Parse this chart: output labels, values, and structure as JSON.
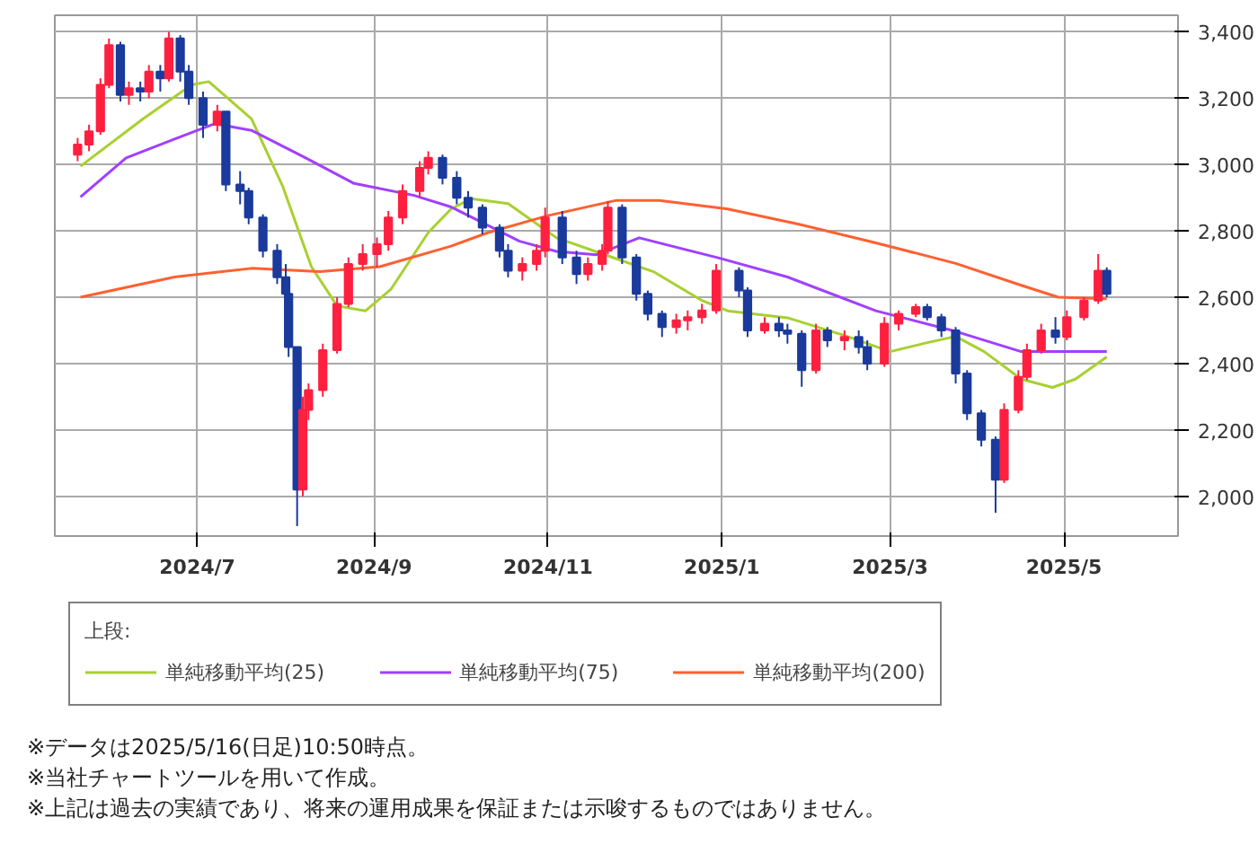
{
  "chart_data": {
    "type": "candlestick",
    "x": [
      "2024-05-20",
      "2024-05-24",
      "2024-05-28",
      "2024-05-31",
      "2024-06-04",
      "2024-06-07",
      "2024-06-11",
      "2024-06-14",
      "2024-06-18",
      "2024-06-21",
      "2024-06-25",
      "2024-06-28",
      "2024-07-03",
      "2024-07-08",
      "2024-07-11",
      "2024-07-16",
      "2024-07-19",
      "2024-07-24",
      "2024-07-29",
      "2024-08-01",
      "2024-08-02",
      "2024-08-05",
      "2024-08-07",
      "2024-08-09",
      "2024-08-14",
      "2024-08-19",
      "2024-08-23",
      "2024-08-28",
      "2024-09-02",
      "2024-09-06",
      "2024-09-11",
      "2024-09-17",
      "2024-09-20",
      "2024-09-25",
      "2024-09-30",
      "2024-10-04",
      "2024-10-09",
      "2024-10-15",
      "2024-10-18",
      "2024-10-23",
      "2024-10-28",
      "2024-10-31",
      "2024-11-06",
      "2024-11-11",
      "2024-11-15",
      "2024-11-20",
      "2024-11-22",
      "2024-11-27",
      "2024-12-02",
      "2024-12-06",
      "2024-12-11",
      "2024-12-16",
      "2024-12-20",
      "2024-12-25",
      "2024-12-30",
      "2025-01-07",
      "2025-01-10",
      "2025-01-16",
      "2025-01-21",
      "2025-01-24",
      "2025-01-29",
      "2025-02-03",
      "2025-02-07",
      "2025-02-13",
      "2025-02-18",
      "2025-02-21",
      "2025-02-27",
      "2025-03-04",
      "2025-03-10",
      "2025-03-14",
      "2025-03-19",
      "2025-03-24",
      "2025-03-28",
      "2025-04-02",
      "2025-04-07",
      "2025-04-10",
      "2025-04-15",
      "2025-04-18",
      "2025-04-23",
      "2025-04-28",
      "2025-05-02",
      "2025-05-08",
      "2025-05-13",
      "2025-05-16"
    ],
    "ohlc": [
      [
        3030,
        3080,
        3010,
        3060
      ],
      [
        3060,
        3120,
        3040,
        3100
      ],
      [
        3100,
        3260,
        3090,
        3240
      ],
      [
        3240,
        3380,
        3230,
        3360
      ],
      [
        3360,
        3370,
        3190,
        3210
      ],
      [
        3210,
        3250,
        3180,
        3230
      ],
      [
        3230,
        3250,
        3190,
        3220
      ],
      [
        3220,
        3300,
        3200,
        3280
      ],
      [
        3280,
        3300,
        3220,
        3260
      ],
      [
        3260,
        3400,
        3250,
        3380
      ],
      [
        3380,
        3390,
        3250,
        3280
      ],
      [
        3280,
        3300,
        3180,
        3200
      ],
      [
        3200,
        3220,
        3080,
        3120
      ],
      [
        3120,
        3180,
        3100,
        3160
      ],
      [
        3160,
        3160,
        2920,
        2940
      ],
      [
        2940,
        2980,
        2880,
        2920
      ],
      [
        2920,
        2930,
        2820,
        2840
      ],
      [
        2840,
        2850,
        2720,
        2740
      ],
      [
        2740,
        2760,
        2640,
        2660
      ],
      [
        2660,
        2700,
        2590,
        2610
      ],
      [
        2610,
        2620,
        2420,
        2450
      ],
      [
        2450,
        2450,
        1910,
        2020
      ],
      [
        2020,
        2300,
        2000,
        2260
      ],
      [
        2260,
        2340,
        2230,
        2320
      ],
      [
        2320,
        2460,
        2300,
        2440
      ],
      [
        2440,
        2600,
        2430,
        2580
      ],
      [
        2580,
        2720,
        2570,
        2700
      ],
      [
        2700,
        2760,
        2680,
        2730
      ],
      [
        2730,
        2780,
        2690,
        2760
      ],
      [
        2760,
        2860,
        2740,
        2840
      ],
      [
        2840,
        2940,
        2820,
        2920
      ],
      [
        2920,
        3010,
        2900,
        2990
      ],
      [
        2990,
        3040,
        2970,
        3020
      ],
      [
        3020,
        3030,
        2940,
        2960
      ],
      [
        2960,
        2980,
        2880,
        2900
      ],
      [
        2900,
        2920,
        2840,
        2870
      ],
      [
        2870,
        2880,
        2790,
        2810
      ],
      [
        2810,
        2820,
        2720,
        2740
      ],
      [
        2740,
        2760,
        2660,
        2680
      ],
      [
        2680,
        2720,
        2650,
        2700
      ],
      [
        2700,
        2760,
        2680,
        2740
      ],
      [
        2740,
        2870,
        2720,
        2840
      ],
      [
        2840,
        2860,
        2700,
        2720
      ],
      [
        2720,
        2740,
        2640,
        2670
      ],
      [
        2670,
        2720,
        2650,
        2700
      ],
      [
        2700,
        2760,
        2680,
        2740
      ],
      [
        2740,
        2890,
        2730,
        2870
      ],
      [
        2870,
        2880,
        2700,
        2720
      ],
      [
        2720,
        2730,
        2590,
        2610
      ],
      [
        2610,
        2620,
        2530,
        2550
      ],
      [
        2550,
        2560,
        2480,
        2510
      ],
      [
        2510,
        2550,
        2490,
        2530
      ],
      [
        2530,
        2560,
        2500,
        2540
      ],
      [
        2540,
        2580,
        2520,
        2560
      ],
      [
        2560,
        2700,
        2550,
        2680
      ],
      [
        2680,
        2690,
        2600,
        2620
      ],
      [
        2620,
        2630,
        2480,
        2500
      ],
      [
        2500,
        2540,
        2490,
        2520
      ],
      [
        2520,
        2540,
        2480,
        2500
      ],
      [
        2500,
        2520,
        2460,
        2490
      ],
      [
        2490,
        2500,
        2330,
        2380
      ],
      [
        2380,
        2520,
        2370,
        2500
      ],
      [
        2500,
        2510,
        2450,
        2470
      ],
      [
        2470,
        2500,
        2440,
        2480
      ],
      [
        2480,
        2500,
        2430,
        2450
      ],
      [
        2450,
        2470,
        2380,
        2400
      ],
      [
        2400,
        2540,
        2390,
        2520
      ],
      [
        2520,
        2560,
        2500,
        2550
      ],
      [
        2550,
        2580,
        2540,
        2570
      ],
      [
        2570,
        2580,
        2530,
        2540
      ],
      [
        2540,
        2550,
        2480,
        2500
      ],
      [
        2500,
        2510,
        2340,
        2370
      ],
      [
        2370,
        2380,
        2230,
        2250
      ],
      [
        2250,
        2260,
        2150,
        2170
      ],
      [
        2170,
        2180,
        1950,
        2050
      ],
      [
        2050,
        2280,
        2040,
        2260
      ],
      [
        2260,
        2380,
        2250,
        2360
      ],
      [
        2360,
        2460,
        2350,
        2440
      ],
      [
        2440,
        2520,
        2430,
        2500
      ],
      [
        2500,
        2540,
        2460,
        2480
      ],
      [
        2480,
        2560,
        2470,
        2540
      ],
      [
        2540,
        2600,
        2530,
        2590
      ],
      [
        2590,
        2730,
        2580,
        2680
      ],
      [
        2680,
        2690,
        2600,
        2610
      ]
    ],
    "colors": [
      "#ff2040",
      "#ff2040",
      "#ff2040",
      "#ff2040",
      "#1a3a9c",
      "#ff2040",
      "#1a3a9c",
      "#ff2040",
      "#1a3a9c",
      "#ff2040",
      "#1a3a9c",
      "#1a3a9c",
      "#1a3a9c",
      "#ff2040",
      "#1a3a9c",
      "#1a3a9c",
      "#1a3a9c",
      "#1a3a9c",
      "#1a3a9c",
      "#1a3a9c",
      "#1a3a9c",
      "#1a3a9c",
      "#ff2040",
      "#ff2040",
      "#ff2040",
      "#ff2040",
      "#ff2040",
      "#ff2040",
      "#ff2040",
      "#ff2040",
      "#ff2040",
      "#ff2040",
      "#ff2040",
      "#1a3a9c",
      "#1a3a9c",
      "#1a3a9c",
      "#1a3a9c",
      "#1a3a9c",
      "#1a3a9c",
      "#ff2040",
      "#ff2040",
      "#ff2040",
      "#1a3a9c",
      "#1a3a9c",
      "#ff2040",
      "#ff2040",
      "#ff2040",
      "#1a3a9c",
      "#1a3a9c",
      "#1a3a9c",
      "#1a3a9c",
      "#ff2040",
      "#ff2040",
      "#ff2040",
      "#ff2040",
      "#1a3a9c",
      "#1a3a9c",
      "#ff2040",
      "#1a3a9c",
      "#1a3a9c",
      "#1a3a9c",
      "#ff2040",
      "#1a3a9c",
      "#ff2040",
      "#1a3a9c",
      "#1a3a9c",
      "#ff2040",
      "#ff2040",
      "#ff2040",
      "#1a3a9c",
      "#1a3a9c",
      "#1a3a9c",
      "#1a3a9c",
      "#1a3a9c",
      "#1a3a9c",
      "#ff2040",
      "#ff2040",
      "#ff2040",
      "#ff2040",
      "#1a3a9c",
      "#ff2040",
      "#ff2040",
      "#ff2040",
      "#1a3a9c"
    ],
    "series": [
      {
        "name": "単純移動平均(25)",
        "type": "line",
        "color": "#a8d030",
        "x": [
          "2024-05-21",
          "2024-06-12",
          "2024-06-29",
          "2024-07-05",
          "2024-07-20",
          "2024-07-31",
          "2024-08-10",
          "2024-08-19",
          "2024-08-29",
          "2024-09-07",
          "2024-09-20",
          "2024-09-28",
          "2024-10-05",
          "2024-10-18",
          "2024-11-04",
          "2024-11-21",
          "2024-12-08",
          "2024-12-25",
          "2025-01-03",
          "2025-01-24",
          "2025-02-14",
          "2025-03-01",
          "2025-03-13",
          "2025-03-24",
          "2025-04-03",
          "2025-04-16",
          "2025-04-27",
          "2025-05-05",
          "2025-05-16"
        ],
        "values": [
          2995,
          3138,
          3240,
          3250,
          3138,
          2933,
          2692,
          2574,
          2559,
          2625,
          2795,
          2866,
          2897,
          2882,
          2779,
          2728,
          2677,
          2590,
          2559,
          2538,
          2482,
          2436,
          2461,
          2482,
          2436,
          2353,
          2328,
          2353,
          2420
        ]
      },
      {
        "name": "単純移動平均(75)",
        "type": "line",
        "color": "#a040ff",
        "x": [
          "2024-05-21",
          "2024-06-06",
          "2024-06-23",
          "2024-07-07",
          "2024-07-20",
          "2024-08-08",
          "2024-08-25",
          "2024-09-15",
          "2024-09-28",
          "2024-10-22",
          "2024-11-04",
          "2024-11-18",
          "2024-12-03",
          "2024-12-31",
          "2025-01-24",
          "2025-02-24",
          "2025-03-24",
          "2025-04-16",
          "2025-05-16"
        ],
        "values": [
          2902,
          3020,
          3077,
          3123,
          3103,
          3020,
          2943,
          2907,
          2872,
          2769,
          2738,
          2728,
          2779,
          2718,
          2661,
          2559,
          2497,
          2436,
          2436
        ]
      },
      {
        "name": "単純移動平均(200)",
        "type": "line",
        "color": "#ff6030",
        "x": [
          "2024-05-21",
          "2024-06-23",
          "2024-07-20",
          "2024-08-13",
          "2024-09-03",
          "2024-09-28",
          "2024-10-11",
          "2024-11-01",
          "2024-11-25",
          "2024-12-10",
          "2025-01-03",
          "2025-01-28",
          "2025-02-24",
          "2025-03-24",
          "2025-04-16",
          "2025-04-29",
          "2025-05-16"
        ],
        "values": [
          2600,
          2661,
          2687,
          2677,
          2692,
          2754,
          2795,
          2846,
          2892,
          2892,
          2866,
          2820,
          2764,
          2702,
          2636,
          2600,
          2595
        ]
      }
    ],
    "legend_title": "上段:",
    "legend": "bottom",
    "grid": true,
    "xlim": [
      "2024-05-12",
      "2025-06-10"
    ],
    "xticks": [
      {
        "value": "2024-07-01",
        "label": "2024/7"
      },
      {
        "value": "2024-09-01",
        "label": "2024/9"
      },
      {
        "value": "2024-11-01",
        "label": "2024/11"
      },
      {
        "value": "2025-01-01",
        "label": "2025/1"
      },
      {
        "value": "2025-03-01",
        "label": "2025/3"
      },
      {
        "value": "2025-05-01",
        "label": "2025/5"
      }
    ],
    "ylim": [
      1880,
      3450
    ],
    "yticks": [
      {
        "value": 2000,
        "label": "2,000"
      },
      {
        "value": 2200,
        "label": "2,200"
      },
      {
        "value": 2400,
        "label": "2,400"
      },
      {
        "value": 2600,
        "label": "2,600"
      },
      {
        "value": 2800,
        "label": "2,800"
      },
      {
        "value": 3000,
        "label": "3,000"
      },
      {
        "value": 3200,
        "label": "3,200"
      },
      {
        "value": 3400,
        "label": "3,400"
      }
    ],
    "annotations": [
      "※データは2025/5/16(日足)10:50時点。",
      "※当社チャートツールを用いて作成。",
      "※上記は過去の実績であり、将来の運用成果を保証または示唆するものではありません。"
    ]
  }
}
